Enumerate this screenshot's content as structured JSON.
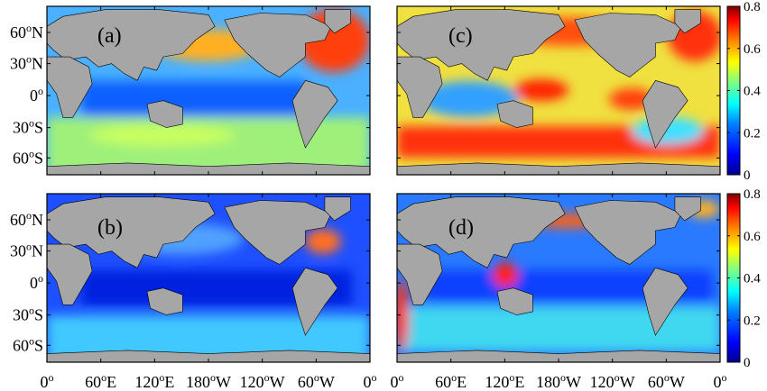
{
  "chart_data": {
    "type": "heatmap",
    "description_note": "",
    "x_ticks": [
      "0o",
      "60oE",
      "120oE",
      "180oW",
      "120oW",
      "60oW",
      "0o"
    ],
    "y_ticks": [
      "60oN",
      "30oN",
      "0o",
      "30oS",
      "60oS"
    ],
    "colorbar": {
      "min": 0,
      "max": 0.8,
      "ticks": [
        "0",
        "0.2",
        "0.4",
        "0.6",
        "0.8"
      ]
    },
    "colormap": [
      "#00008f",
      "#0000ff",
      "#0080ff",
      "#00ffff",
      "#80ff80",
      "#ffff00",
      "#ff8000",
      "#ff0000",
      "#800000"
    ],
    "land_color": "#a6a6a6",
    "panels": [
      {
        "id": "a",
        "label": "(a)",
        "mean_level": 0.22,
        "high_regions": [
          "north-pacific",
          "north-atlantic",
          "southern-ocean"
        ],
        "low_regions": [
          "tropical-pacific",
          "indian-ocean"
        ]
      },
      {
        "id": "b",
        "label": "(b)",
        "mean_level": 0.1,
        "high_regions": [
          "north-atlantic",
          "southern-ocean"
        ],
        "low_regions": [
          "tropical-pacific",
          "indian-ocean",
          "atlantic"
        ]
      },
      {
        "id": "c",
        "label": "(c)",
        "mean_level": 0.5,
        "high_regions": [
          "southern-ocean",
          "north-atlantic",
          "north-pacific",
          "indonesia"
        ],
        "low_regions": [
          "indian-ocean"
        ]
      },
      {
        "id": "d",
        "label": "(d)",
        "mean_level": 0.15,
        "high_regions": [
          "indonesia",
          "north-pacific-coast"
        ],
        "low_regions": [
          "open-ocean"
        ]
      }
    ]
  },
  "axes": {
    "top_left": {
      "x_tick_labels": [],
      "y_tick_labels": [
        "60oN",
        "30oN",
        "0o",
        "30oS",
        "60oS"
      ]
    },
    "bottom_left": {
      "x_tick_labels": [
        "0o",
        "60oE",
        "120oE",
        "180oW",
        "120oW",
        "60oW",
        "0o"
      ],
      "y_tick_labels": [
        "60oN",
        "30oN",
        "0o",
        "30oS",
        "60oS"
      ]
    },
    "bottom_right": {
      "x_tick_labels": [
        "0o",
        "60oE",
        "120oE",
        "180oW",
        "120oW",
        "60oW",
        "0o"
      ]
    }
  }
}
